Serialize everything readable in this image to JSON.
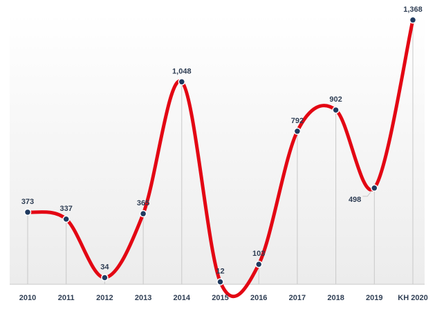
{
  "chart_data": {
    "type": "line",
    "title": "",
    "xlabel": "",
    "ylabel": "",
    "categories": [
      "2010",
      "2011",
      "2012",
      "2013",
      "2014",
      "2015",
      "2016",
      "2017",
      "2018",
      "2019",
      "KH 2020"
    ],
    "series": [
      {
        "values": [
          373,
          337,
          34,
          365,
          1048,
          12,
          103,
          792,
          902,
          498,
          1368
        ],
        "labels": [
          "373",
          "337",
          "34",
          "365",
          "1,048",
          "12",
          "103",
          "792",
          "902",
          "498",
          "1,368"
        ]
      }
    ],
    "ylim": [
      0,
      1400
    ],
    "grid": false,
    "legend": "none",
    "colors": {
      "line": "#e30613",
      "marker": "#1f3a5f",
      "marker_outline": "#ffffff",
      "dropline": "#c8c8c8",
      "baseline": "#cfcfcf",
      "text": "#2f3e54",
      "background_gradient_top": "#ffffff",
      "background_gradient_bottom": "#ececec"
    }
  }
}
